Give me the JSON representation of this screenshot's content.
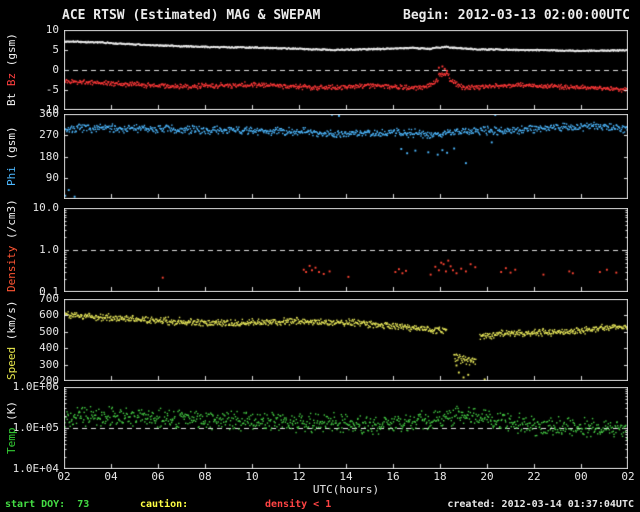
{
  "header": {
    "title": "ACE RTSW (Estimated) MAG & SWEPAM",
    "begin_label": "Begin: 2012-03-13 02:00:00UTC"
  },
  "footer": {
    "start_doy": "start DOY:  73",
    "start_doy_color": "#44dd44",
    "caution_label": "caution:",
    "caution_color": "#ffff44",
    "caution_value": "density < 1",
    "caution_value_color": "#ff4444",
    "created": "created: 2012-03-14 01:37:04UTC",
    "created_color": "#e8e8e8",
    "start_doy_value": 73
  },
  "x_axis": {
    "label": "UTC(hours)",
    "range": [
      2,
      26
    ],
    "ticks": [
      "02",
      "04",
      "06",
      "08",
      "10",
      "12",
      "14",
      "16",
      "18",
      "20",
      "22",
      "00",
      "02"
    ]
  },
  "colors": {
    "background": "#000000",
    "axis": "#dcdcdc",
    "bt": "#ececec",
    "bz": "#ff3838",
    "phi": "#4db8ff",
    "density": "#ff4433",
    "speed": "#e8e85a",
    "temp": "#44cc44"
  },
  "chart_data": [
    {
      "id": "bt-bz",
      "type": "scatter",
      "scale": "linear",
      "ylim": [
        -10,
        10
      ],
      "ref_line": 0,
      "ylabel_parts": [
        {
          "text": "Bt",
          "color": "#f0f0f0"
        },
        {
          "text": "Bz",
          "color": "#ff4040"
        },
        {
          "text": "(gsm)",
          "color": "#f0f0f0"
        }
      ],
      "yticks": [
        {
          "v": 10,
          "t": "10"
        },
        {
          "v": 5,
          "t": "5"
        },
        {
          "v": 0,
          "t": "0"
        },
        {
          "v": -5,
          "t": "-5"
        },
        {
          "v": -10,
          "t": "-10"
        }
      ],
      "series": [
        {
          "name": "Bt",
          "color": "#ececec",
          "noise": 0.22,
          "rate": 55,
          "seed": 3,
          "segments": [
            [
              2,
              7.3,
              3.5,
              7.05
            ],
            [
              3.5,
              7.05,
              5.5,
              6.4
            ],
            [
              5.5,
              6.4,
              8,
              5.95
            ],
            [
              8,
              5.95,
              11,
              5.65
            ],
            [
              11,
              5.65,
              13.5,
              5.15
            ],
            [
              13.5,
              5.15,
              15.5,
              5.45
            ],
            [
              15.5,
              5.45,
              16.8,
              5.7
            ],
            [
              16.8,
              5.7,
              17.6,
              5.45
            ],
            [
              17.6,
              5.55,
              18.3,
              6.0
            ],
            [
              18.3,
              5.85,
              19.5,
              5.35
            ],
            [
              19.5,
              5.35,
              22,
              5.15
            ],
            [
              22,
              5.15,
              24,
              4.95
            ],
            [
              24,
              4.95,
              26,
              5.1
            ]
          ]
        },
        {
          "name": "Bz",
          "color": "#ff3838",
          "noise": 0.75,
          "rate": 40,
          "seed": 5,
          "segments": [
            [
              2,
              -2.6,
              4,
              -3.2
            ],
            [
              4,
              -3.2,
              7,
              -4.0
            ],
            [
              7,
              -4.0,
              10,
              -3.5
            ],
            [
              10,
              -3.5,
              13,
              -4.3
            ],
            [
              13,
              -4.3,
              15,
              -3.7
            ],
            [
              15,
              -3.7,
              17.3,
              -4.4
            ],
            [
              17.3,
              -4.2,
              17.9,
              -2.2
            ],
            [
              17.9,
              -1.0,
              18.35,
              -0.8
            ],
            [
              18.35,
              -2.5,
              19,
              -4.3
            ],
            [
              19,
              -4.3,
              21,
              -3.6
            ],
            [
              21,
              -3.6,
              23.5,
              -4.1
            ],
            [
              23.5,
              -4.1,
              26,
              -4.7
            ]
          ],
          "points": [
            [
              17.95,
              0.6
            ],
            [
              18.1,
              0.9
            ],
            [
              18.2,
              0.3
            ],
            [
              18.3,
              -0.2
            ]
          ]
        }
      ]
    },
    {
      "id": "phi",
      "type": "scatter",
      "scale": "linear",
      "ylim": [
        0,
        360
      ],
      "ref_line": null,
      "ylabel_parts": [
        {
          "text": "Phi",
          "color": "#4db8ff"
        },
        {
          "text": "(gsm)",
          "color": "#f0f0f0"
        }
      ],
      "yticks": [
        {
          "v": 360,
          "t": "360"
        },
        {
          "v": 270,
          "t": "270"
        },
        {
          "v": 180,
          "t": "180"
        },
        {
          "v": 90,
          "t": "90"
        }
      ],
      "series": [
        {
          "name": "Phi",
          "color": "#4db8ff",
          "noise": 20,
          "rate": 40,
          "seed": 7,
          "segments": [
            [
              2,
              300,
              4,
              303
            ],
            [
              4,
              303,
              7,
              296
            ],
            [
              7,
              296,
              10,
              292
            ],
            [
              10,
              292,
              12.5,
              288
            ],
            [
              12.5,
              283,
              14,
              279
            ],
            [
              14,
              279,
              16,
              286
            ],
            [
              16,
              286,
              17.5,
              276
            ],
            [
              17.5,
              276,
              19,
              287
            ],
            [
              19,
              289,
              21,
              296
            ],
            [
              21,
              296,
              23,
              306
            ],
            [
              23,
              306,
              24.5,
              312
            ],
            [
              24.5,
              312,
              26,
              301
            ]
          ],
          "points": [
            [
              2.05,
              14
            ],
            [
              2.2,
              38
            ],
            [
              2.45,
              10
            ],
            [
              13.4,
              357
            ],
            [
              13.7,
              352
            ],
            [
              16.35,
              212
            ],
            [
              16.6,
              194
            ],
            [
              16.95,
              205
            ],
            [
              17.5,
              198
            ],
            [
              17.9,
              188
            ],
            [
              18.1,
              207
            ],
            [
              18.3,
              196
            ],
            [
              18.6,
              214
            ],
            [
              19.1,
              152
            ],
            [
              20.2,
              240
            ],
            [
              20.35,
              356
            ]
          ]
        }
      ]
    },
    {
      "id": "density",
      "type": "scatter",
      "scale": "log",
      "ylim": [
        0.1,
        10
      ],
      "ref_line": 1,
      "ylabel_parts": [
        {
          "text": "Density",
          "color": "#ff5533"
        },
        {
          "text": "(/cm3)",
          "color": "#f0f0f0"
        }
      ],
      "yticks": [
        {
          "v": 10,
          "t": "10.0"
        },
        {
          "v": 1,
          "t": "1.0"
        },
        {
          "v": 0.1,
          "t": "0.1"
        }
      ],
      "series": [
        {
          "name": "Density",
          "color": "#ff4433",
          "noise": 0,
          "rate": 0,
          "seed": 11,
          "segments": [],
          "points": [
            [
              6.2,
              0.22
            ],
            [
              12.2,
              0.34
            ],
            [
              12.3,
              0.3
            ],
            [
              12.45,
              0.42
            ],
            [
              12.55,
              0.33
            ],
            [
              12.7,
              0.38
            ],
            [
              12.85,
              0.3
            ],
            [
              13.05,
              0.27
            ],
            [
              13.3,
              0.31
            ],
            [
              14.1,
              0.23
            ],
            [
              16.1,
              0.3
            ],
            [
              16.25,
              0.35
            ],
            [
              16.4,
              0.28
            ],
            [
              16.55,
              0.32
            ],
            [
              17.6,
              0.26
            ],
            [
              17.8,
              0.4
            ],
            [
              17.95,
              0.33
            ],
            [
              18.05,
              0.5
            ],
            [
              18.15,
              0.46
            ],
            [
              18.25,
              0.31
            ],
            [
              18.35,
              0.56
            ],
            [
              18.45,
              0.41
            ],
            [
              18.55,
              0.33
            ],
            [
              18.7,
              0.28
            ],
            [
              18.9,
              0.36
            ],
            [
              19.1,
              0.31
            ],
            [
              19.3,
              0.46
            ],
            [
              19.5,
              0.39
            ],
            [
              20.6,
              0.3
            ],
            [
              20.8,
              0.37
            ],
            [
              21.0,
              0.29
            ],
            [
              21.2,
              0.34
            ],
            [
              22.4,
              0.26
            ],
            [
              23.5,
              0.31
            ],
            [
              23.65,
              0.28
            ],
            [
              24.8,
              0.3
            ],
            [
              25.1,
              0.34
            ],
            [
              25.5,
              0.29
            ]
          ]
        }
      ]
    },
    {
      "id": "speed",
      "type": "scatter",
      "scale": "linear",
      "ylim": [
        200,
        700
      ],
      "ref_line": null,
      "ylabel_parts": [
        {
          "text": "Speed",
          "color": "#e8e84c"
        },
        {
          "text": "(km/s)",
          "color": "#f0f0f0"
        }
      ],
      "yticks": [
        {
          "v": 700,
          "t": "700"
        },
        {
          "v": 600,
          "t": "600"
        },
        {
          "v": 500,
          "t": "500"
        },
        {
          "v": 400,
          "t": "400"
        },
        {
          "v": 300,
          "t": "300"
        },
        {
          "v": 200,
          "t": "200"
        }
      ],
      "series": [
        {
          "name": "Speed",
          "color": "#e8e85a",
          "noise": 26,
          "rate": 45,
          "seed": 9,
          "segments": [
            [
              2,
              608,
              3.5,
              592
            ],
            [
              3.5,
              592,
              6,
              572
            ],
            [
              6,
              572,
              9,
              556
            ],
            [
              9,
              556,
              12,
              568
            ],
            [
              12,
              568,
              14.5,
              560
            ],
            [
              14.5,
              560,
              16.5,
              532
            ],
            [
              16.5,
              532,
              18.25,
              508
            ],
            [
              18.55,
              345,
              19.5,
              330,
              38
            ],
            [
              19.65,
              468,
              20.5,
              492
            ],
            [
              20.5,
              492,
              23,
              502
            ],
            [
              23,
              502,
              26,
              536
            ]
          ],
          "points": [
            [
              18.7,
              295
            ],
            [
              18.8,
              252
            ],
            [
              19.0,
              222
            ],
            [
              19.2,
              238
            ],
            [
              19.9,
              210
            ]
          ]
        }
      ]
    },
    {
      "id": "temp",
      "type": "scatter",
      "scale": "log",
      "ylim": [
        10000,
        1000000
      ],
      "ref_line": 100000,
      "ylabel_parts": [
        {
          "text": "Temp",
          "color": "#33cc33"
        },
        {
          "text": "(K)",
          "color": "#f0f0f0"
        }
      ],
      "yticks": [
        {
          "v": 1000000,
          "t": "1.0E+06"
        },
        {
          "v": 100000,
          "t": "1.0E+05"
        },
        {
          "v": 10000,
          "t": "1.0E+04"
        }
      ],
      "series": [
        {
          "name": "Temp",
          "color": "#44cc44",
          "noise": 0.27,
          "rate": 40,
          "seed": 13,
          "segments": [
            [
              2,
              200000,
              5,
              190000
            ],
            [
              5,
              190000,
              9,
              160000
            ],
            [
              9,
              160000,
              13,
              140000
            ],
            [
              13,
              140000,
              16,
              125000
            ],
            [
              16,
              125000,
              17.8,
              170000
            ],
            [
              17.8,
              170000,
              19.2,
              210000
            ],
            [
              19.2,
              210000,
              22,
              120000
            ],
            [
              22,
              120000,
              26,
              100000
            ]
          ]
        }
      ]
    }
  ]
}
